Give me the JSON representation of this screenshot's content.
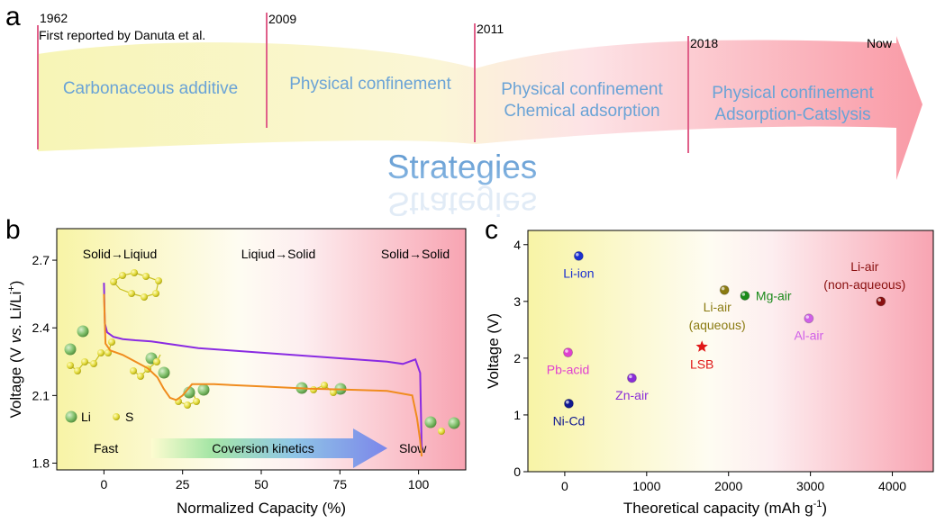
{
  "panel_a": {
    "label": "a",
    "eras": [
      {
        "year": "1962",
        "note": "First reported by Danuta et al.",
        "lines": [
          "Carbonaceous additive"
        ]
      },
      {
        "year": "2009",
        "lines": [
          "Physical confinement"
        ]
      },
      {
        "year": "2011",
        "lines": [
          "Physical confinement",
          "Chemical adsorption"
        ]
      },
      {
        "year": "2018",
        "lines": [
          "Physical confinement",
          "Adsorption-Catslysis"
        ]
      },
      {
        "year": "Now"
      }
    ],
    "banner": "Strategies",
    "colors": {
      "start": "#f6f4b0",
      "end": "#f9a8b0",
      "divider": "#e0608a",
      "text": "#6aa3d6"
    }
  },
  "panel_b": {
    "label": "b",
    "ylabel_prefix": "Voltage (V ",
    "ylabel_vs": "vs.",
    "ylabel_suffix": " Li/Li",
    "ylabel_sup": "+",
    "ylabel_close": ")",
    "xlabel": "Normalized Capacity (%)",
    "stage_labels": [
      "Solid→Liqiud",
      "Liqiud→Solid",
      "Solid→Solid"
    ],
    "legend": {
      "li": "Li",
      "s": "S"
    },
    "kinetics": {
      "fast": "Fast",
      "label": "Coversion kinetics",
      "slow": "Slow"
    },
    "colors": {
      "purple": "#8a2be2",
      "orange": "#f08c1e",
      "li": "#7fbf6a",
      "s": "#d8d030"
    }
  },
  "panel_c": {
    "label": "c",
    "ylabel": "Voltage (V)",
    "xlabel_prefix": "Theoretical capacity (mAh g",
    "xlabel_sup": "-1",
    "xlabel_close": ")"
  },
  "chart_data": [
    {
      "type": "line",
      "panel": "b",
      "xlabel": "Normalized Capacity (%)",
      "ylabel": "Voltage (V vs. Li/Li+)",
      "xlim": [
        -15,
        115
      ],
      "ylim": [
        1.77,
        2.84
      ],
      "xticks": [
        0,
        25,
        50,
        75,
        100
      ],
      "yticks": [
        1.8,
        2.1,
        2.4,
        2.7
      ],
      "series": [
        {
          "color": "#8a2be2",
          "x": [
            0,
            0.3,
            1,
            3,
            6,
            10,
            15,
            20,
            25,
            30,
            40,
            50,
            60,
            70,
            80,
            90,
            95,
            99,
            100.5,
            101
          ],
          "y": [
            2.6,
            2.42,
            2.38,
            2.36,
            2.35,
            2.345,
            2.34,
            2.33,
            2.32,
            2.31,
            2.3,
            2.29,
            2.28,
            2.27,
            2.26,
            2.25,
            2.24,
            2.26,
            2.2,
            1.86
          ]
        },
        {
          "color": "#f08c1e",
          "x": [
            0,
            0.5,
            2,
            6,
            10,
            14,
            17,
            19,
            21,
            23,
            25,
            28,
            35,
            50,
            65,
            80,
            90,
            98,
            99.5,
            100.5,
            101
          ],
          "y": [
            2.55,
            2.33,
            2.3,
            2.28,
            2.25,
            2.22,
            2.18,
            2.13,
            2.09,
            2.08,
            2.1,
            2.15,
            2.15,
            2.14,
            2.13,
            2.125,
            2.12,
            2.1,
            2.0,
            1.9,
            1.83
          ]
        }
      ]
    },
    {
      "type": "scatter",
      "panel": "c",
      "xlabel": "Theoretical capacity (mAh g-1)",
      "ylabel": "Voltage (V)",
      "xlim": [
        -450,
        4500
      ],
      "ylim": [
        0,
        4.25
      ],
      "xticks": [
        0,
        1000,
        2000,
        3000,
        4000
      ],
      "yticks": [
        0,
        1,
        2,
        3,
        4
      ],
      "points": [
        {
          "label": "Li-ion",
          "x": 170,
          "y": 3.8,
          "color": "#1a2fd0"
        },
        {
          "label": "Pb-acid",
          "x": 40,
          "y": 2.1,
          "color": "#e040d0"
        },
        {
          "label": "Ni-Cd",
          "x": 50,
          "y": 1.2,
          "color": "#101890"
        },
        {
          "label": "Zn-air",
          "x": 820,
          "y": 1.65,
          "color": "#8a2ed8"
        },
        {
          "label": "LSB",
          "x": 1675,
          "y": 2.2,
          "color": "#e01818",
          "marker": "star"
        },
        {
          "label": "Li-air (aqueous)",
          "x": 1950,
          "y": 3.2,
          "color": "#8a7a10"
        },
        {
          "label": "Mg-air",
          "x": 2200,
          "y": 3.1,
          "color": "#1a8a1a"
        },
        {
          "label": "Al-air",
          "x": 2980,
          "y": 2.7,
          "color": "#d060e8"
        },
        {
          "label": "Li-air (non-aqueous)",
          "x": 3860,
          "y": 3.0,
          "color": "#8a1010"
        }
      ]
    }
  ]
}
